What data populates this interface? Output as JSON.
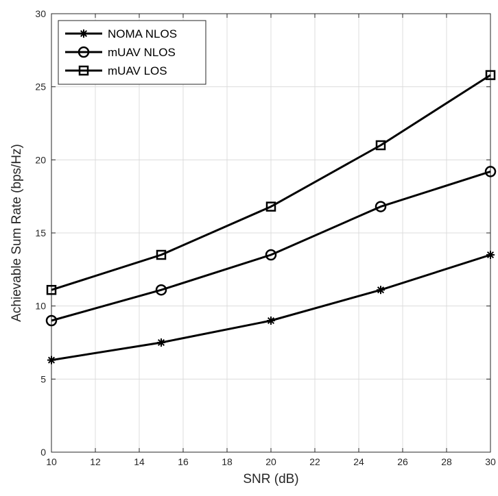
{
  "chart_data": {
    "type": "line",
    "xlabel": "SNR (dB)",
    "ylabel": "Achievable Sum Rate (bps/Hz)",
    "xlim": [
      10,
      30
    ],
    "ylim": [
      0,
      30
    ],
    "xticks": [
      10,
      12,
      14,
      16,
      18,
      20,
      22,
      24,
      26,
      28,
      30
    ],
    "yticks": [
      0,
      5,
      10,
      15,
      20,
      25,
      30
    ],
    "grid": true,
    "legend_position": "top-left",
    "x": [
      10,
      15,
      20,
      25,
      30
    ],
    "series": [
      {
        "name": "NOMA NLOS",
        "marker": "asterisk",
        "values": [
          6.3,
          7.5,
          9.0,
          11.1,
          13.5
        ]
      },
      {
        "name": "mUAV NLOS",
        "marker": "circle",
        "values": [
          9.0,
          11.1,
          13.5,
          16.8,
          19.2
        ]
      },
      {
        "name": "mUAV LOS",
        "marker": "square",
        "values": [
          11.1,
          13.5,
          16.8,
          21.0,
          25.8
        ]
      }
    ],
    "line_color": "#000000",
    "grid_color": "#dcdcdc"
  }
}
